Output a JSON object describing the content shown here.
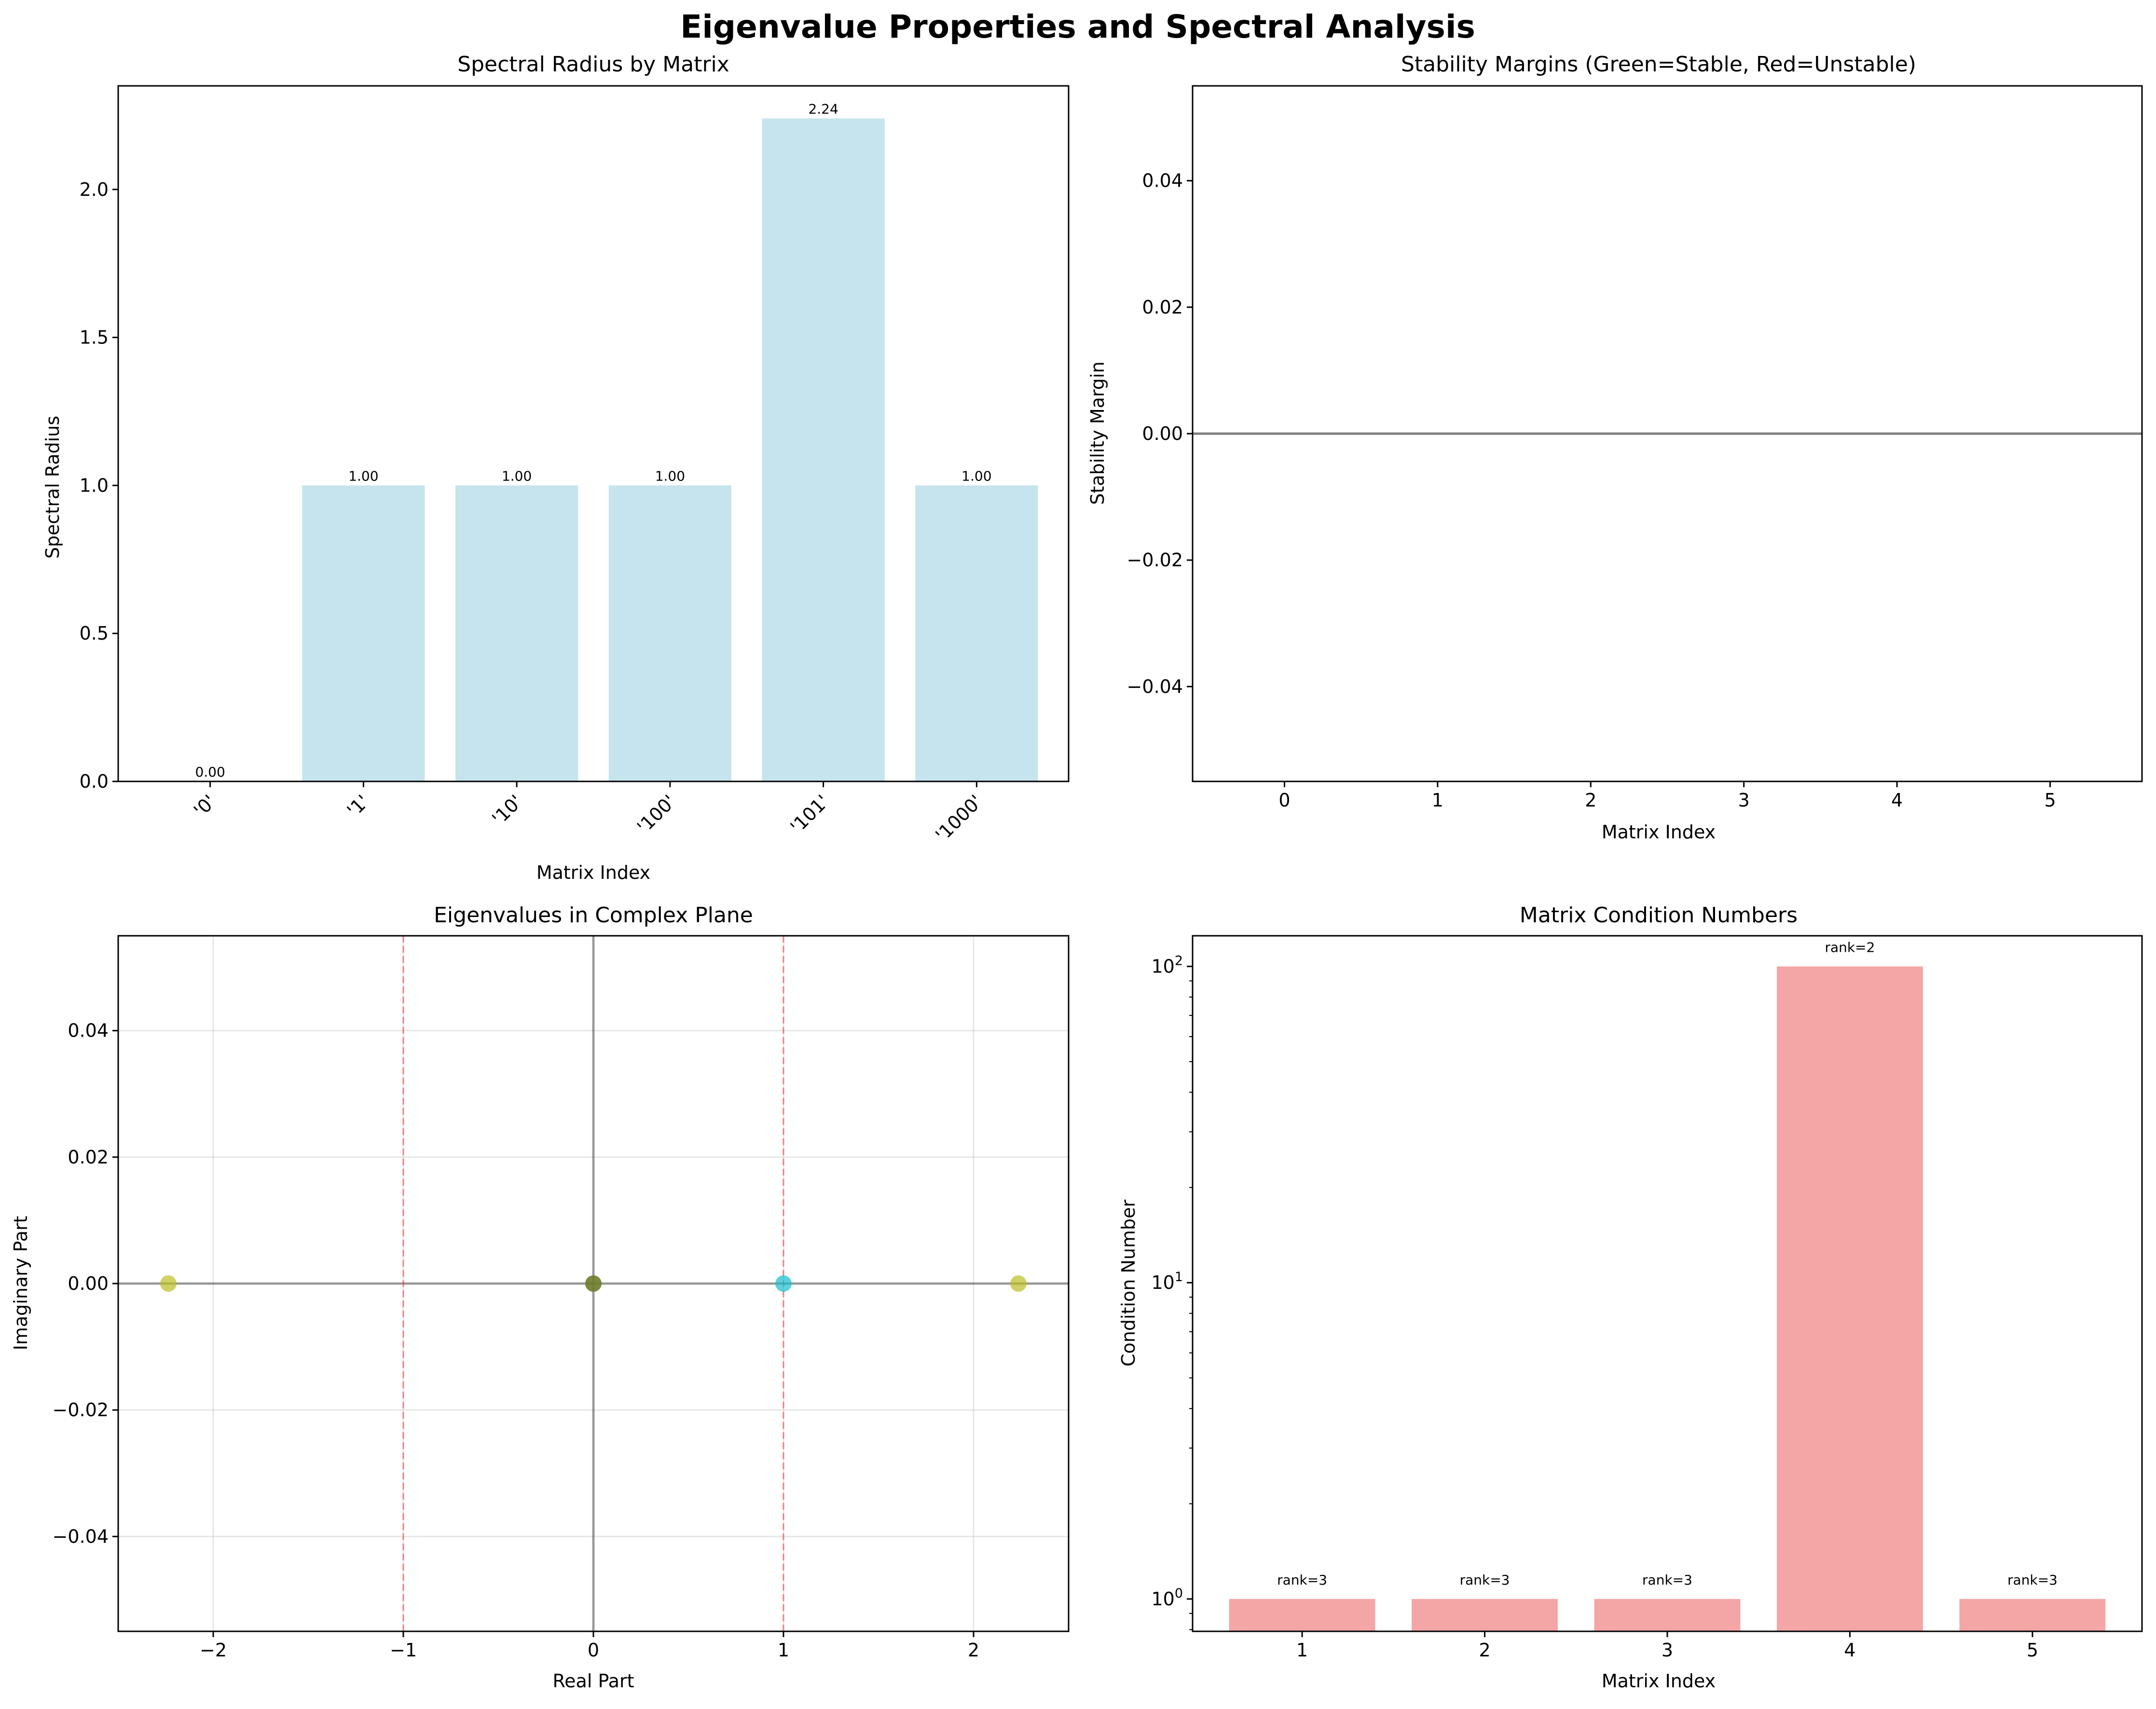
{
  "figure_title": "Eigenvalue Properties and Spectral Analysis",
  "chart_data": [
    {
      "type": "bar",
      "title": "Spectral Radius by Matrix",
      "xlabel": "Matrix Index",
      "ylabel": "Spectral Radius",
      "categories": [
        "'0'",
        "'1'",
        "'10'",
        "'100'",
        "'101'",
        "'1000'"
      ],
      "values": [
        0.0,
        1.0,
        1.0,
        1.0,
        2.24,
        1.0
      ],
      "data_labels": [
        "0.00",
        "1.00",
        "1.00",
        "1.00",
        "2.24",
        "1.00"
      ],
      "ylim": [
        0,
        2.35
      ],
      "yticks": [
        0.0,
        0.5,
        1.0,
        1.5,
        2.0
      ],
      "ytick_labels": [
        "0.0",
        "0.5",
        "1.0",
        "1.5",
        "2.0"
      ],
      "bar_color": "#add8e6",
      "grid": false
    },
    {
      "type": "bar",
      "title": "Stability Margins (Green=Stable, Red=Unstable)",
      "xlabel": "Matrix Index",
      "ylabel": "Stability Margin",
      "categories": [
        "0",
        "1",
        "2",
        "3",
        "4",
        "5"
      ],
      "values": [
        0,
        0,
        0,
        0,
        0,
        0
      ],
      "xlim": [
        -0.6,
        5.6
      ],
      "ylim": [
        -0.055,
        0.055
      ],
      "yticks": [
        -0.04,
        -0.02,
        0.0,
        0.02,
        0.04
      ],
      "ytick_labels": [
        "−0.04",
        "−0.02",
        "0.00",
        "0.02",
        "0.04"
      ],
      "reference_line_y": 0,
      "grid": false
    },
    {
      "type": "scatter",
      "title": "Eigenvalues in Complex Plane",
      "xlabel": "Real Part",
      "ylabel": "Imaginary Part",
      "series": [
        {
          "color": "#bcbd22",
          "points": [
            [
              -2.236,
              0
            ],
            [
              0,
              0
            ],
            [
              2.236,
              0
            ]
          ]
        },
        {
          "color": "#17becf",
          "points": [
            [
              1,
              0
            ]
          ]
        },
        {
          "color": "#556b2f",
          "points": [
            [
              0,
              0
            ]
          ]
        }
      ],
      "xlim": [
        -2.5,
        2.5
      ],
      "ylim": [
        -0.055,
        0.055
      ],
      "xticks": [
        -2,
        -1,
        0,
        1,
        2
      ],
      "xtick_labels": [
        "−2",
        "−1",
        "0",
        "1",
        "2"
      ],
      "yticks": [
        -0.04,
        -0.02,
        0.0,
        0.02,
        0.04
      ],
      "ytick_labels": [
        "−0.04",
        "−0.02",
        "0.00",
        "0.02",
        "0.04"
      ],
      "reference_lines_x": [
        -1,
        1
      ],
      "axis_lines": true,
      "grid": true
    },
    {
      "type": "bar",
      "title": "Matrix Condition Numbers",
      "xlabel": "Matrix Index",
      "ylabel": "Condition Number",
      "categories": [
        "1",
        "2",
        "3",
        "4",
        "5"
      ],
      "values": [
        1,
        1,
        1,
        100,
        1
      ],
      "data_labels": [
        "rank=3",
        "rank=3",
        "rank=3",
        "rank=2",
        "rank=3"
      ],
      "yscale": "log",
      "ylim": [
        0.79,
        125
      ],
      "yticks": [
        1,
        10,
        100
      ],
      "ytick_bases": [
        "10",
        "10",
        "10"
      ],
      "ytick_exponents": [
        "0",
        "1",
        "2"
      ],
      "bar_color": "#f08080",
      "grid": false
    }
  ]
}
